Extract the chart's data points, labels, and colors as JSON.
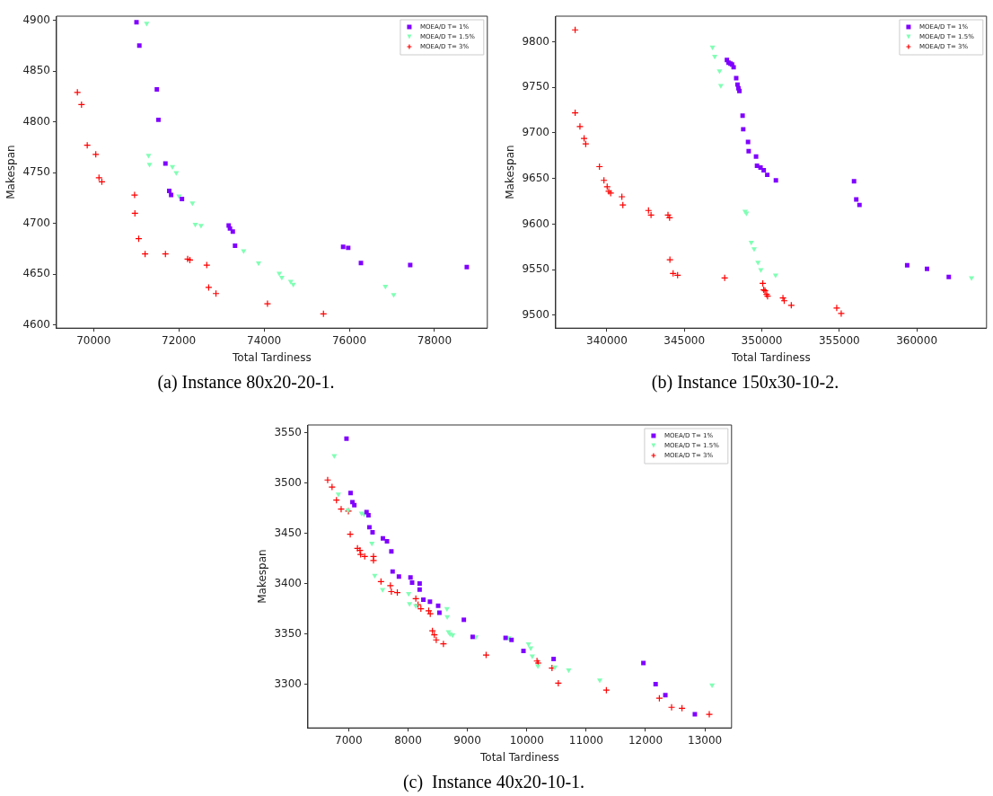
{
  "chart_data": [
    {
      "type": "scatter",
      "xlabel": "Total Tardiness",
      "ylabel": "Makespan",
      "annotations": [
        "(a) Instance 80x20-20-1."
      ],
      "xlim": [
        69130,
        79240
      ],
      "ylim": [
        4597,
        4904
      ],
      "xticks": [
        70000,
        72000,
        74000,
        76000,
        78000
      ],
      "yticks": [
        4600,
        4650,
        4700,
        4750,
        4800,
        4850,
        4900
      ],
      "grid": false,
      "legend": "top right",
      "series": [
        {
          "name": "MOEA/D T= 1%",
          "color": "#8000ff",
          "marker": "square",
          "x": [
            71007,
            71074,
            71485,
            71522,
            71686,
            71775,
            71820,
            72074,
            73171,
            73200,
            73267,
            73320,
            75856,
            75975,
            76274,
            77430,
            78758
          ],
          "values": [
            4898,
            4875,
            4832,
            4802,
            4759,
            4732,
            4728,
            4724,
            4698,
            4695,
            4692,
            4678,
            4677,
            4676,
            4661,
            4659,
            4657
          ]
        },
        {
          "name": "MOEA/D T= 1.5%",
          "color": "#80ffb4",
          "marker": "triangle",
          "x": [
            71246,
            71290,
            71313,
            71850,
            71940,
            72007,
            72089,
            72313,
            72320,
            72387,
            72521,
            73521,
            73872,
            74357,
            74417,
            74626,
            74686,
            76848,
            77042
          ],
          "values": [
            4897,
            4767,
            4758,
            4756,
            4750,
            4727,
            null,
            null,
            4720,
            4699,
            4698,
            4673,
            4661,
            4651,
            4647,
            4643,
            4640,
            4638,
            4630
          ]
        },
        {
          "name": "MOEA/D T= 3%",
          "color": "#ff0000",
          "marker": "cross",
          "x": [
            69620,
            69717,
            69851,
            70052,
            70127,
            70194,
            70962,
            70970,
            71059,
            71209,
            71686,
            72208,
            72260,
            72656,
            72701,
            72872,
            74081,
            75394
          ],
          "values": [
            4829,
            4817,
            4777,
            4768,
            4745,
            4741,
            4728,
            4710,
            4685,
            4670,
            4670,
            4665,
            4664,
            4659,
            4637,
            4631,
            4621,
            4611
          ]
        }
      ]
    },
    {
      "type": "scatter",
      "xlabel": "Total Tardiness",
      "ylabel": "Makespan",
      "annotations": [
        "(b) Instance 150x30-10-2."
      ],
      "xlim": [
        336700,
        364500
      ],
      "ylim": [
        9486,
        9828
      ],
      "xticks": [
        340000,
        345000,
        350000,
        355000,
        360000
      ],
      "yticks": [
        9500,
        9550,
        9600,
        9650,
        9700,
        9750,
        9800
      ],
      "grid": false,
      "legend": "top right",
      "series": [
        {
          "name": "MOEA/D T= 1%",
          "color": "#8000ff",
          "marker": "square",
          "x": [
            347748,
            347851,
            347975,
            348078,
            348181,
            348347,
            348430,
            348491,
            348553,
            348760,
            348801,
            349111,
            349152,
            349628,
            349690,
            349917,
            350123,
            350351,
            350908,
            355950,
            356094,
            356301,
            359379,
            360660,
            362064
          ],
          "values": [
            9780,
            9777,
            9776,
            9775,
            9772,
            9760,
            9753,
            9749,
            9746,
            9719,
            9704,
            9690,
            9680,
            9674,
            9664,
            9662,
            9659,
            9654,
            9648,
            9647,
            9627,
            9621,
            9555,
            9551,
            9542
          ]
        },
        {
          "name": "MOEA/D T= 1.5%",
          "color": "#80ffb4",
          "marker": "triangle",
          "x": [
            346818,
            346962,
            347272,
            347355,
            348925,
            349008,
            349318,
            349504,
            349752,
            349937,
            350888,
            363531
          ],
          "values": [
            9794,
            9784,
            9768,
            9752,
            9614,
            9612,
            9580,
            9573,
            9558,
            9550,
            9544,
            9541
          ]
        },
        {
          "name": "MOEA/D T= 3%",
          "color": "#ff0000",
          "marker": "cross",
          "x": [
            337955,
            337955,
            338265,
            338533,
            338636,
            339525,
            339814,
            340021,
            340124,
            340248,
            340971,
            341033,
            342686,
            342851,
            343946,
            344049,
            344070,
            344276,
            344566,
            347603,
            350062,
            350124,
            350206,
            350310,
            350372,
            351364,
            351446,
            351901,
            354834,
            355123
          ],
          "values": [
            9813,
            9722,
            9707,
            9694,
            9688,
            9663,
            9648,
            9641,
            9636,
            9634,
            9630,
            9621,
            9615,
            9610,
            9610,
            9607,
            9561,
            9546,
            9544,
            9541,
            9535,
            9528,
            9527,
            9523,
            9521,
            9519,
            9516,
            9511,
            9508,
            9502
          ]
        }
      ]
    },
    {
      "type": "scatter",
      "xlabel": "Total Tardiness",
      "ylabel": "Makespan",
      "annotations": [
        "(c)  Instance 40x20-10-1."
      ],
      "xlim": [
        6313,
        13449
      ],
      "ylim": [
        3256.5,
        3557.7
      ],
      "xticks": [
        7000,
        8000,
        9000,
        10000,
        11000,
        12000,
        13000
      ],
      "yticks": [
        3300,
        3350,
        3400,
        3450,
        3500,
        3550
      ],
      "grid": false,
      "legend": "top right",
      "series": [
        {
          "name": "MOEA/D T= 1%",
          "color": "#8000ff",
          "marker": "square",
          "x": [
            6963,
            7032,
            7063,
            7095,
            7301,
            7333,
            7349,
            7402,
            7576,
            7645,
            7719,
            7740,
            7846,
            8041,
            8068,
            8195,
            8195,
            8258,
            8369,
            8507,
            8528,
            8940,
            9088,
            9643,
            9743,
            9944,
            10452,
            11964,
            12170,
            12334,
            12831
          ],
          "values": [
            3544,
            3490,
            3481,
            3478,
            3471,
            3468,
            3456,
            3451,
            3445,
            3442,
            3432,
            3412,
            3407,
            3406,
            3401,
            3400,
            3394,
            3384,
            3382,
            3378,
            3371,
            3364,
            3347,
            3346,
            3344,
            3333,
            3325,
            3321,
            3300,
            3289,
            3270
          ]
        },
        {
          "name": "MOEA/D T= 1.5%",
          "color": "#80ffb4",
          "marker": "triangle",
          "x": [
            6757,
            6826,
            6989,
            7217,
            7259,
            7359,
            7386,
            7391,
            7439,
            7571,
            8010,
            8025,
            8131,
            8655,
            8660,
            8681,
            8707,
            8750,
            9141,
            9696,
            10029,
            10066,
            10092,
            10187,
            10473,
            10706,
            11229,
            13121
          ],
          "values": [
            3527,
            3489,
            3473,
            3470,
            3469,
            null,
            null,
            3440,
            3408,
            3394,
            3390,
            3380,
            3378,
            3375,
            3367,
            3352,
            3350,
            3349,
            3347,
            3346,
            3340,
            3336,
            3328,
            3318,
            3317,
            3314,
            3304,
            3299
          ]
        },
        {
          "name": "MOEA/D T= 3%",
          "color": "#ff0000",
          "marker": "cross",
          "x": [
            6646,
            6720,
            6794,
            6873,
            6995,
            7026,
            7148,
            7190,
            7201,
            7270,
            7418,
            7418,
            7544,
            7703,
            7719,
            7819,
            8131,
            8168,
            8216,
            8348,
            8374,
            8411,
            8443,
            8475,
            8596,
            9315,
            10172,
            10193,
            10425,
            10531,
            11340,
            12233,
            12439,
            12614,
            13074
          ],
          "values": [
            3503,
            3496,
            3483,
            3474,
            3472,
            3449,
            3435,
            3433,
            3429,
            3427,
            3427,
            3423,
            3402,
            3398,
            3392,
            3391,
            3385,
            3379,
            3375,
            3373,
            3370,
            3353,
            3349,
            3344,
            3340,
            3329,
            3323,
            3321,
            3316,
            3301,
            3294,
            3286,
            3277,
            3276,
            3270
          ]
        }
      ]
    }
  ]
}
